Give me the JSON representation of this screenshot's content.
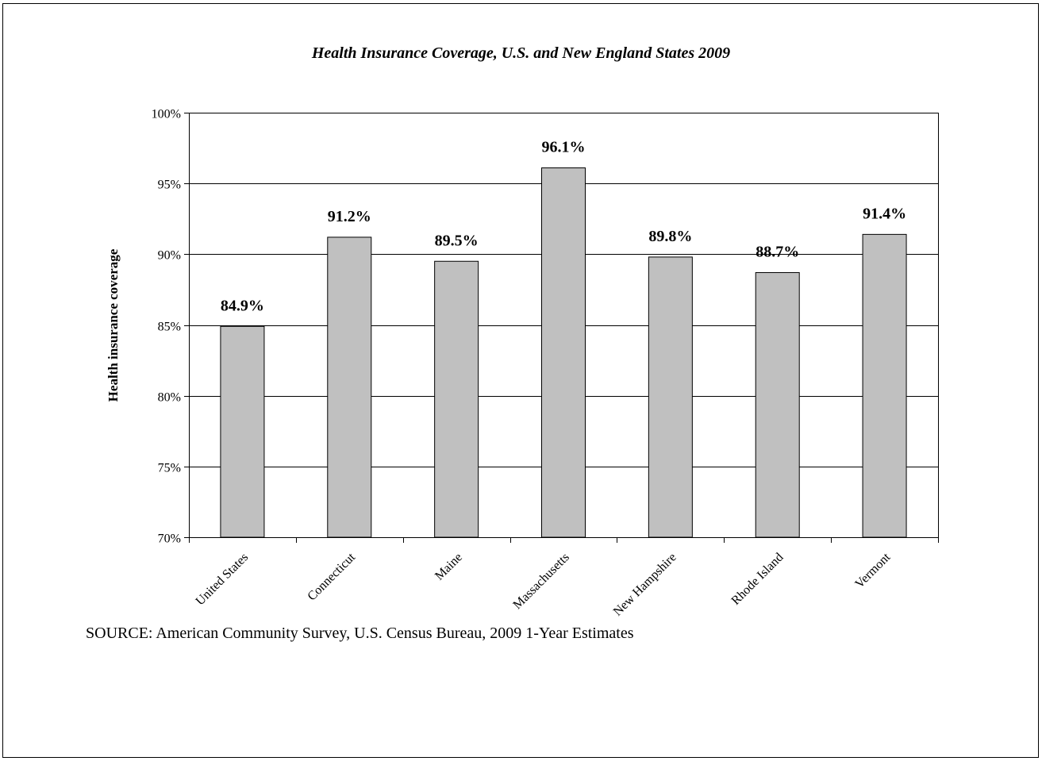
{
  "chart_data": {
    "type": "bar",
    "title": "Health Insurance Coverage, U.S. and New England States 2009",
    "ylabel": "Health insurance coverage",
    "xlabel": "",
    "categories": [
      "United States",
      "Connecticut",
      "Maine",
      "Massachusetts",
      "New Hampshire",
      "Rhode Island",
      "Vermont"
    ],
    "values": [
      84.9,
      91.2,
      89.5,
      96.1,
      89.8,
      88.7,
      91.4
    ],
    "data_labels": [
      "84.9%",
      "91.2%",
      "89.5%",
      "96.1%",
      "89.8%",
      "88.7%",
      "91.4%"
    ],
    "ylim": [
      70,
      100
    ],
    "y_ticks": [
      {
        "value": 70,
        "label": "70%"
      },
      {
        "value": 75,
        "label": "75%"
      },
      {
        "value": 80,
        "label": "80%"
      },
      {
        "value": 85,
        "label": "85%"
      },
      {
        "value": 90,
        "label": "90%"
      },
      {
        "value": 95,
        "label": "95%"
      },
      {
        "value": 100,
        "label": "100%"
      }
    ],
    "grid": true,
    "legend": "none",
    "bar_color": "#c0c0c0"
  },
  "source": "SOURCE: American Community Survey, U.S. Census Bureau, 2009 1-Year Estimates"
}
